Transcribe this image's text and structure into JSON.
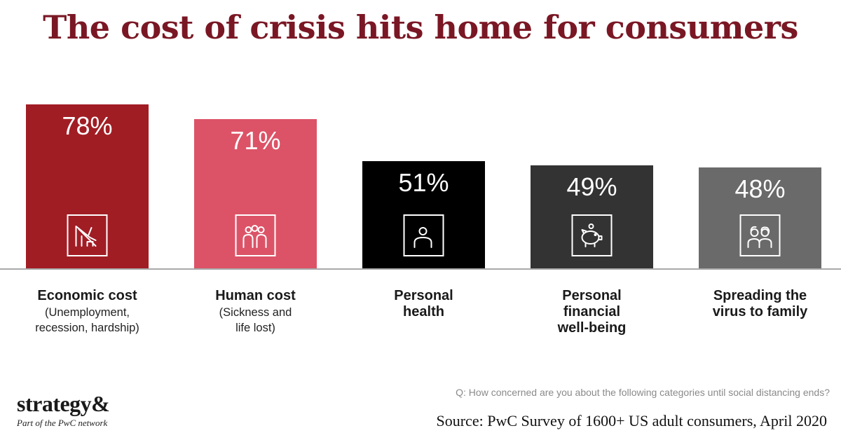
{
  "title": "The cost of crisis hits home for consumers",
  "question": "Q: How concerned are you about the following categories until social distancing ends?",
  "source": "Source: PwC Survey of 1600+ US adult consumers, April 2020",
  "logo": {
    "wordmark": "strategy&",
    "tagline": "Part of the PwC network"
  },
  "chart_data": {
    "type": "bar",
    "ylim": [
      0,
      100
    ],
    "categories": [
      {
        "title": [
          "Economic cost"
        ],
        "sub": [
          "(Unemployment,",
          "recession, hardship)"
        ],
        "value": 78,
        "label": "78%",
        "color": "#a11d24",
        "icon": "falling-building-icon"
      },
      {
        "title": [
          "Human cost"
        ],
        "sub": [
          "(Sickness and",
          "life lost)"
        ],
        "value": 71,
        "label": "71%",
        "color": "#dc5367",
        "icon": "group-of-people-icon"
      },
      {
        "title": [
          "Personal",
          "health"
        ],
        "sub": [],
        "value": 51,
        "label": "51%",
        "color": "#000000",
        "icon": "person-icon"
      },
      {
        "title": [
          "Personal",
          "financial",
          "well-being"
        ],
        "sub": [],
        "value": 49,
        "label": "49%",
        "color": "#333333",
        "icon": "piggy-bank-icon"
      },
      {
        "title": [
          "Spreading the",
          "virus to family"
        ],
        "sub": [],
        "value": 48,
        "label": "48%",
        "color": "#6a6a6a",
        "icon": "family-icon"
      }
    ]
  }
}
